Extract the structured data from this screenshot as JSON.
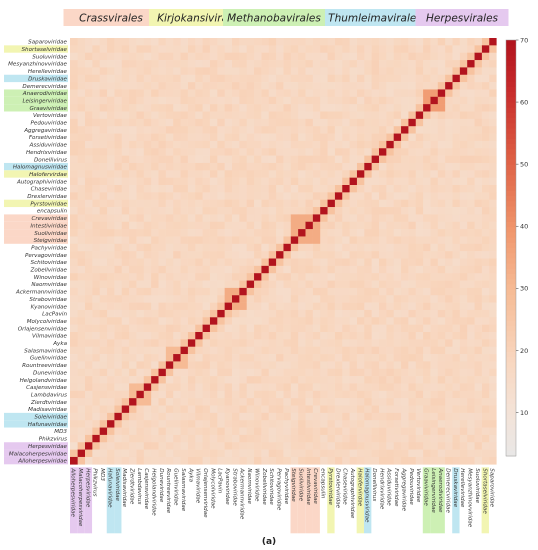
{
  "chart_data": {
    "type": "heatmap",
    "caption": "(a)",
    "rows": [
      "Saparoviridae",
      "Shortaselviridae",
      "Suoluviridae",
      "Mesyanzhinovviridae",
      "Herelleviridae",
      "Druskaviridae",
      "Demerecviridae",
      "Anaerodiviridae",
      "Leisingerviridae",
      "Graaviviridae",
      "Vertoviridae",
      "Pedouviridae",
      "Aggregaviridae",
      "Forsetiviridae",
      "Assiduviridae",
      "Hendrixviridae",
      "Donellivirus",
      "Halomagnusviridae",
      "Halofervirdae",
      "Autographiviridae",
      "Chaseviridae",
      "Drexlerviridae",
      "Pyrstoviridae",
      "encapsulin",
      "Crevaviridae",
      "Intestiviridae",
      "Suoliviridae",
      "Steigviridae",
      "Pachyviridae",
      "Pervagoviridae",
      "Schitoviridae",
      "Zobellviridae",
      "Winoviridae",
      "Naomviridae",
      "Ackermannviridae",
      "Straboviridae",
      "Kyanoviridae",
      "LacPavin",
      "Molycolviridae",
      "Orlajensenviridae",
      "Vilmaviridae",
      "Ayka",
      "Salasmaviridae",
      "Guelinviridae",
      "Rountreeviridae",
      "Duneviridae",
      "Helgolandviridae",
      "Casjensviridae",
      "Lambdavirus",
      "Zierdtviridae",
      "Madisaviridae",
      "Soleiviridae",
      "Hafunaviridae",
      "MD3",
      "Phikzvirus",
      "Herpesviridae",
      "Malacoherpesviridae",
      "Alloherpesviridae"
    ],
    "orders": [
      {
        "name": "Crassvirales",
        "color": "#fbd7c7",
        "members": [
          "Crevaviridae",
          "Intestiviridae",
          "Suoliviridae",
          "Steigviridae"
        ]
      },
      {
        "name": "Kirjokansivirales",
        "color": "#f2f5b2",
        "members": [
          "Shortaselviridae",
          "Halofervirdae",
          "Pyrstoviridae"
        ]
      },
      {
        "name": "Methanobavirales",
        "color": "#cdf0b4",
        "members": [
          "Anaerodiviridae",
          "Leisingerviridae",
          "Graaviviridae"
        ]
      },
      {
        "name": "Thumleimavirales",
        "color": "#bfe6f1",
        "members": [
          "Druskaviridae",
          "Halomagnusviridae",
          "Soleiviridae",
          "Hafunaviridae"
        ]
      },
      {
        "name": "Herpesvirales",
        "color": "#e5c9ef",
        "members": [
          "Herpesviridae",
          "Malacoherpesviridae",
          "Alloherpesviridae"
        ]
      }
    ],
    "blocks": [
      {
        "rows": [
          "Anaerodiviridae",
          "Leisingerviridae",
          "Graaviviridae"
        ],
        "value": 38
      },
      {
        "rows": [
          "Crevaviridae",
          "Intestiviridae",
          "Suoliviridae",
          "Steigviridae"
        ],
        "value": 34
      },
      {
        "rows": [
          "Ackermannviridae",
          "Straboviridae",
          "Kyanoviridae"
        ],
        "value": 34
      },
      {
        "rows": [
          "Salasmaviridae",
          "Guelinviridae",
          "Rountreeviridae"
        ],
        "value": 30
      },
      {
        "rows": [
          "Casjensviridae",
          "Lambdavirus",
          "Zierdtviridae"
        ],
        "value": 30
      },
      {
        "rows": [
          "Herpesviridae",
          "Malacoherpesviridae",
          "Alloherpesviridae"
        ],
        "value": 14
      }
    ],
    "diagonal_value": 70,
    "background_value": 18,
    "colorbar": {
      "min": 3,
      "max": 70,
      "ticks": [
        10,
        20,
        30,
        40,
        50,
        60,
        70
      ]
    }
  }
}
